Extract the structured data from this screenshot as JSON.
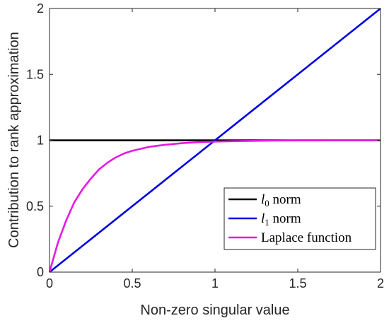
{
  "chart_data": {
    "type": "line",
    "xlabel": "Non-zero singular value",
    "ylabel": "Contribution to rank approximation",
    "xlim": [
      0,
      2
    ],
    "ylim": [
      0,
      2
    ],
    "xticks": [
      0,
      0.5,
      1,
      1.5,
      2
    ],
    "xtick_labels": [
      "0",
      "0.5",
      "1",
      "1.5",
      "2"
    ],
    "yticks": [
      0,
      0.5,
      1,
      1.5,
      2
    ],
    "ytick_labels": [
      "0",
      "0.5",
      "1",
      "1.5",
      "2"
    ],
    "grid": false,
    "legend_position": "bottom-right",
    "series": [
      {
        "name": "l0 norm",
        "legend_main": "l",
        "legend_sub": "0",
        "legend_rest": " norm",
        "color": "#000000",
        "x": [
          0,
          2
        ],
        "y": [
          1,
          1
        ]
      },
      {
        "name": "l1 norm",
        "legend_main": "l",
        "legend_sub": "1",
        "legend_rest": " norm",
        "color": "#0000e6",
        "x": [
          0,
          2
        ],
        "y": [
          0,
          2
        ]
      },
      {
        "name": "Laplace function",
        "legend_main": "Laplace function",
        "legend_sub": "",
        "legend_rest": "",
        "color": "#e619e6",
        "x": [
          0,
          0.05,
          0.1,
          0.15,
          0.2,
          0.25,
          0.3,
          0.35,
          0.4,
          0.45,
          0.5,
          0.6,
          0.7,
          0.8,
          0.9,
          1.0,
          1.1,
          1.2,
          1.3,
          1.4,
          1.5,
          1.6,
          1.7,
          1.8,
          1.9,
          2.0
        ],
        "y": [
          0,
          0.22,
          0.39,
          0.53,
          0.63,
          0.71,
          0.78,
          0.83,
          0.87,
          0.9,
          0.92,
          0.95,
          0.966,
          0.978,
          0.986,
          0.99,
          0.993,
          0.995,
          0.997,
          0.998,
          0.999,
          0.999,
          1.0,
          1.0,
          1.0,
          1.0
        ]
      }
    ]
  }
}
